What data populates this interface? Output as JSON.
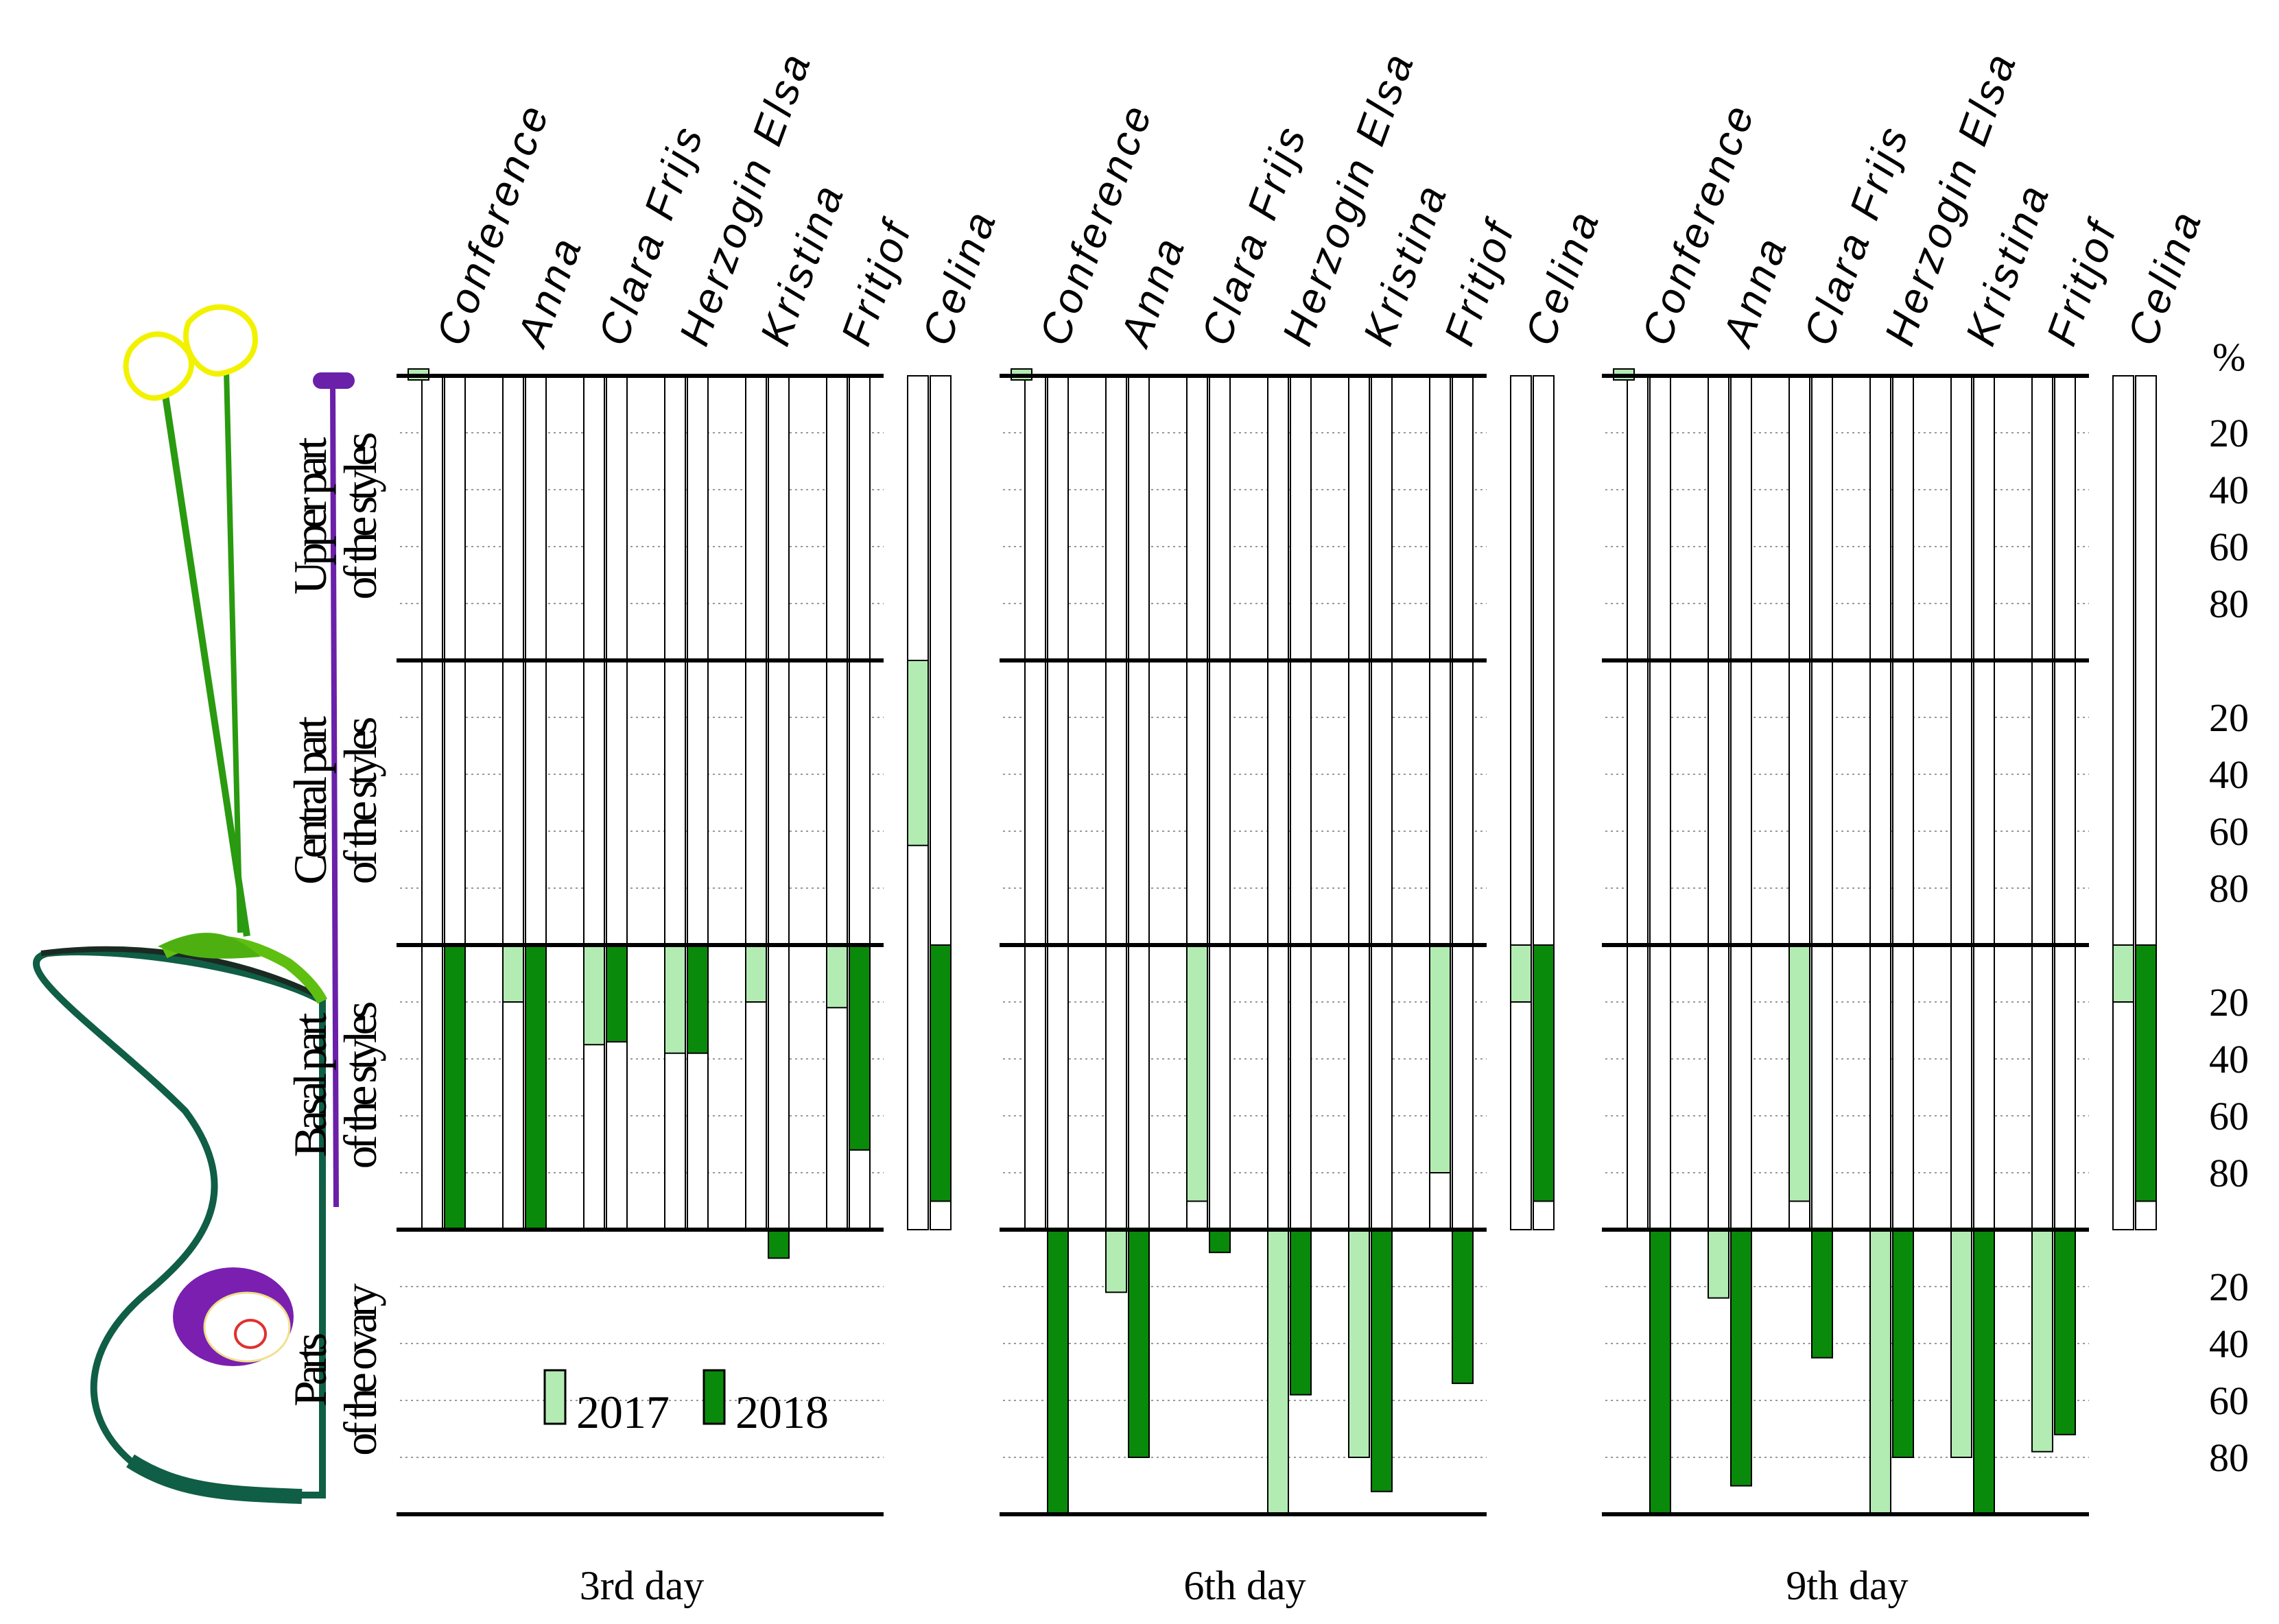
{
  "chart_data": {
    "type": "bar",
    "orientation": "vertical-downward, stacked zones",
    "categories": [
      "Conference",
      "Anna",
      "Clara Frijs",
      "Herzogin Elsa",
      "Kristina",
      "Fritjof",
      "Celina"
    ],
    "series_names": [
      "2017",
      "2018"
    ],
    "zones": [
      {
        "line1": "Upper part",
        "line2": "of the styles"
      },
      {
        "line1": "Central part",
        "line2": "of the styles"
      },
      {
        "line1": "Basal part",
        "line2": "of the styles"
      },
      {
        "line1": "Parts",
        "line2": "of the ovary"
      }
    ],
    "y_unit": "%",
    "y_ticks": [
      "20",
      "40",
      "60",
      "80"
    ],
    "zone_range": [
      0,
      100
    ],
    "depth_scale": "0-400: each zone spans 100 (%) of pollen-tube penetration depth",
    "panels": [
      {
        "label": "3rd day",
        "values_2017": [
          2,
          220,
          235,
          238,
          220,
          222,
          165
        ],
        "values_2018": [
          300,
          300,
          234,
          238,
          310,
          272,
          290
        ]
      },
      {
        "label": "6th day",
        "values_2017": [
          2,
          322,
          290,
          400,
          380,
          280,
          220
        ],
        "values_2018": [
          400,
          380,
          308,
          358,
          392,
          354,
          290
        ]
      },
      {
        "label": "9th day",
        "values_2017": [
          2,
          324,
          290,
          400,
          380,
          378,
          220
        ],
        "values_2018": [
          400,
          390,
          345,
          380,
          400,
          372,
          290
        ]
      }
    ],
    "colors": {
      "2017": "#b3ecb3",
      "2018": "#0a8a0a",
      "empty_bar": "#ffffff",
      "bar_outline": "#000000"
    },
    "legend": {
      "placement": "lower-left",
      "items": [
        "2017",
        "2018"
      ]
    }
  },
  "pistil_icon": "pistil-diagram"
}
